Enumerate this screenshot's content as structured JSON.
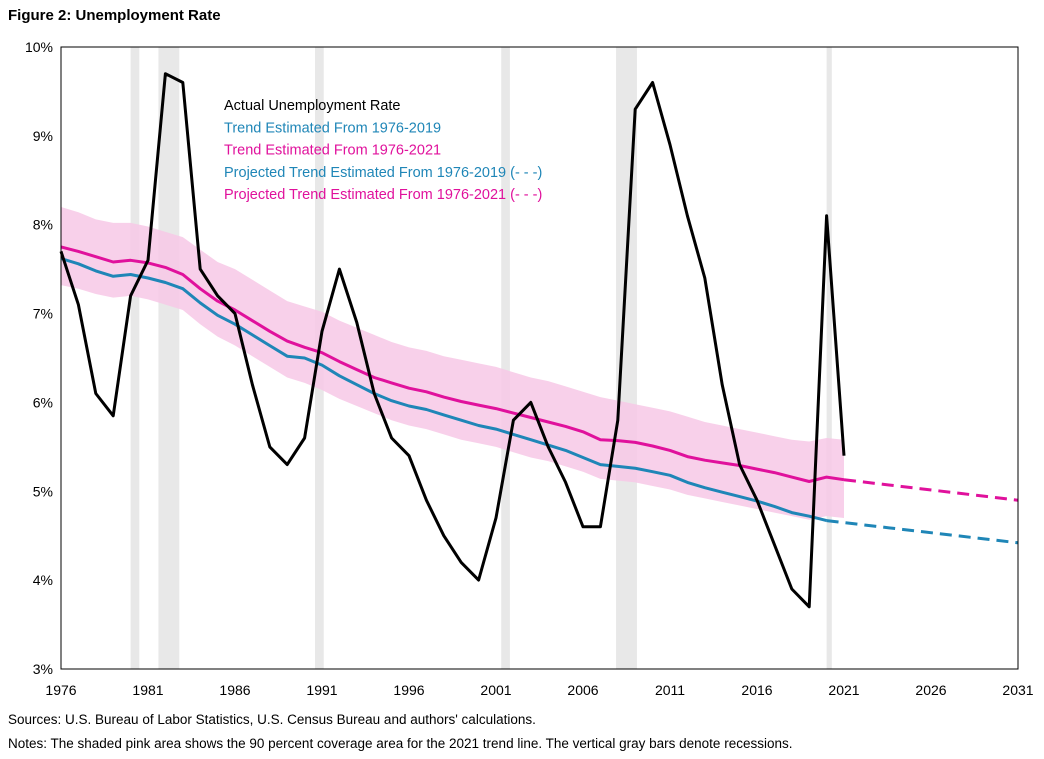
{
  "figure_title": "Figure 2: Unemployment Rate",
  "footer": {
    "sources": "Sources: U.S. Bureau of Labor Statistics, U.S. Census Bureau and authors' calculations.",
    "notes": "Notes: The shaded pink area shows the 90 percent coverage area for the 2021  trend line. The vertical gray bars denote recessions."
  },
  "colors": {
    "actual": "#000000",
    "trend_2019": "#1f86b7",
    "trend_2021": "#e0119c",
    "band": "#f7c8e6",
    "recession": "#e8e8e8",
    "frame": "#000000"
  },
  "chart_data": {
    "type": "line",
    "title": "",
    "xlabel": "",
    "ylabel": "",
    "xlim": [
      1976,
      2031
    ],
    "ylim": [
      3,
      10
    ],
    "x_ticks": [
      "1976",
      "1981",
      "1986",
      "1991",
      "1996",
      "2001",
      "2006",
      "2011",
      "2016",
      "2021",
      "2026",
      "2031"
    ],
    "y_ticks": [
      "3%",
      "4%",
      "5%",
      "6%",
      "7%",
      "8%",
      "9%",
      "10%"
    ],
    "legend": [
      {
        "label": "Actual Unemployment  Rate",
        "color": "#000000"
      },
      {
        "label": "Trend Estimated From 1976-2019",
        "color": "#1f86b7"
      },
      {
        "label": "Trend Estimated From 1976-2021",
        "color": "#e0119c"
      },
      {
        "label": "Projected Trend Estimated From 1976-2019 (- - -)",
        "color": "#1f86b7"
      },
      {
        "label": "Projected Trend Estimated From 1976-2021 (- - -)",
        "color": "#e0119c"
      }
    ],
    "legend_position": "upper-center",
    "recessions": [
      [
        1980.0,
        1980.5
      ],
      [
        1981.6,
        1982.8
      ],
      [
        1990.6,
        1991.1
      ],
      [
        2001.3,
        2001.8
      ],
      [
        2007.9,
        2009.1
      ],
      [
        2020.0,
        2020.3
      ]
    ],
    "series": [
      {
        "name": "Actual Unemployment  Rate",
        "style": "solid",
        "x": [
          1976,
          1977,
          1978,
          1979,
          1980,
          1981,
          1982,
          1983,
          1984,
          1985,
          1986,
          1987,
          1988,
          1989,
          1990,
          1991,
          1992,
          1993,
          1994,
          1995,
          1996,
          1997,
          1998,
          1999,
          2000,
          2001,
          2002,
          2003,
          2004,
          2005,
          2006,
          2007,
          2008,
          2009,
          2010,
          2011,
          2012,
          2013,
          2014,
          2015,
          2016,
          2017,
          2018,
          2019,
          2020,
          2021
        ],
        "y": [
          7.7,
          7.1,
          6.1,
          5.85,
          7.2,
          7.6,
          9.7,
          9.6,
          7.5,
          7.2,
          7.0,
          6.2,
          5.5,
          5.3,
          5.6,
          6.8,
          7.5,
          6.9,
          6.1,
          5.6,
          5.4,
          4.9,
          4.5,
          4.2,
          4.0,
          4.7,
          5.8,
          6.0,
          5.5,
          5.1,
          4.6,
          4.6,
          5.8,
          9.3,
          9.6,
          8.9,
          8.1,
          7.4,
          6.2,
          5.3,
          4.9,
          4.4,
          3.9,
          3.7,
          8.1,
          5.4
        ]
      },
      {
        "name": "Trend Estimated From 1976-2019",
        "style": "solid",
        "x": [
          1976,
          1977,
          1978,
          1979,
          1980,
          1981,
          1982,
          1983,
          1984,
          1985,
          1986,
          1987,
          1988,
          1989,
          1990,
          1991,
          1992,
          1993,
          1994,
          1995,
          1996,
          1997,
          1998,
          1999,
          2000,
          2001,
          2002,
          2003,
          2004,
          2005,
          2006,
          2007,
          2008,
          2009,
          2010,
          2011,
          2012,
          2013,
          2014,
          2015,
          2016,
          2017,
          2018,
          2019,
          2020
        ],
        "y": [
          7.62,
          7.56,
          7.48,
          7.42,
          7.44,
          7.4,
          7.35,
          7.28,
          7.12,
          6.98,
          6.88,
          6.76,
          6.64,
          6.52,
          6.5,
          6.42,
          6.3,
          6.2,
          6.1,
          6.02,
          5.96,
          5.92,
          5.86,
          5.8,
          5.74,
          5.7,
          5.64,
          5.58,
          5.52,
          5.46,
          5.38,
          5.3,
          5.28,
          5.26,
          5.22,
          5.18,
          5.1,
          5.04,
          4.99,
          4.94,
          4.89,
          4.83,
          4.76,
          4.72,
          4.67
        ]
      },
      {
        "name": "Trend Estimated From 1976-2021",
        "style": "solid",
        "x": [
          1976,
          1977,
          1978,
          1979,
          1980,
          1981,
          1982,
          1983,
          1984,
          1985,
          1986,
          1987,
          1988,
          1989,
          1990,
          1991,
          1992,
          1993,
          1994,
          1995,
          1996,
          1997,
          1998,
          1999,
          2000,
          2001,
          2002,
          2003,
          2004,
          2005,
          2006,
          2007,
          2008,
          2009,
          2010,
          2011,
          2012,
          2013,
          2014,
          2015,
          2016,
          2017,
          2018,
          2019,
          2020,
          2021
        ],
        "y": [
          7.75,
          7.7,
          7.64,
          7.58,
          7.6,
          7.57,
          7.52,
          7.44,
          7.28,
          7.14,
          7.04,
          6.92,
          6.8,
          6.69,
          6.62,
          6.56,
          6.46,
          6.37,
          6.28,
          6.22,
          6.16,
          6.12,
          6.06,
          6.01,
          5.97,
          5.93,
          5.88,
          5.83,
          5.78,
          5.73,
          5.67,
          5.58,
          5.57,
          5.55,
          5.51,
          5.46,
          5.39,
          5.35,
          5.32,
          5.29,
          5.25,
          5.21,
          5.16,
          5.11,
          5.16,
          5.13
        ]
      },
      {
        "name": "Projected Trend Estimated From 1976-2019 (- - -)",
        "style": "dashed",
        "x": [
          2020,
          2031
        ],
        "y": [
          4.67,
          4.42
        ]
      },
      {
        "name": "Projected Trend Estimated From 1976-2021 (- - -)",
        "style": "dashed",
        "x": [
          2021,
          2031
        ],
        "y": [
          5.13,
          4.9
        ]
      }
    ],
    "band_2021": {
      "x": [
        1976,
        1977,
        1978,
        1979,
        1980,
        1981,
        1982,
        1983,
        1984,
        1985,
        1986,
        1987,
        1988,
        1989,
        1990,
        1991,
        1992,
        1993,
        1994,
        1995,
        1996,
        1997,
        1998,
        1999,
        2000,
        2001,
        2002,
        2003,
        2004,
        2005,
        2006,
        2007,
        2008,
        2009,
        2010,
        2011,
        2012,
        2013,
        2014,
        2015,
        2016,
        2017,
        2018,
        2019,
        2020,
        2021
      ],
      "upper": [
        8.2,
        8.14,
        8.06,
        8.02,
        8.02,
        7.98,
        7.92,
        7.86,
        7.72,
        7.58,
        7.5,
        7.38,
        7.26,
        7.14,
        7.08,
        7.02,
        6.92,
        6.84,
        6.76,
        6.68,
        6.62,
        6.58,
        6.52,
        6.48,
        6.44,
        6.4,
        6.34,
        6.28,
        6.24,
        6.18,
        6.12,
        6.06,
        6.02,
        5.98,
        5.94,
        5.9,
        5.84,
        5.78,
        5.74,
        5.7,
        5.66,
        5.62,
        5.58,
        5.56,
        5.6,
        5.58
      ],
      "lower": [
        7.32,
        7.28,
        7.22,
        7.18,
        7.2,
        7.16,
        7.1,
        7.04,
        6.88,
        6.74,
        6.64,
        6.52,
        6.4,
        6.28,
        6.22,
        6.14,
        6.04,
        5.96,
        5.88,
        5.8,
        5.74,
        5.7,
        5.64,
        5.58,
        5.54,
        5.5,
        5.44,
        5.38,
        5.34,
        5.28,
        5.22,
        5.14,
        5.12,
        5.1,
        5.06,
        5.02,
        4.96,
        4.92,
        4.88,
        4.84,
        4.8,
        4.76,
        4.72,
        4.68,
        4.72,
        4.7
      ]
    }
  }
}
